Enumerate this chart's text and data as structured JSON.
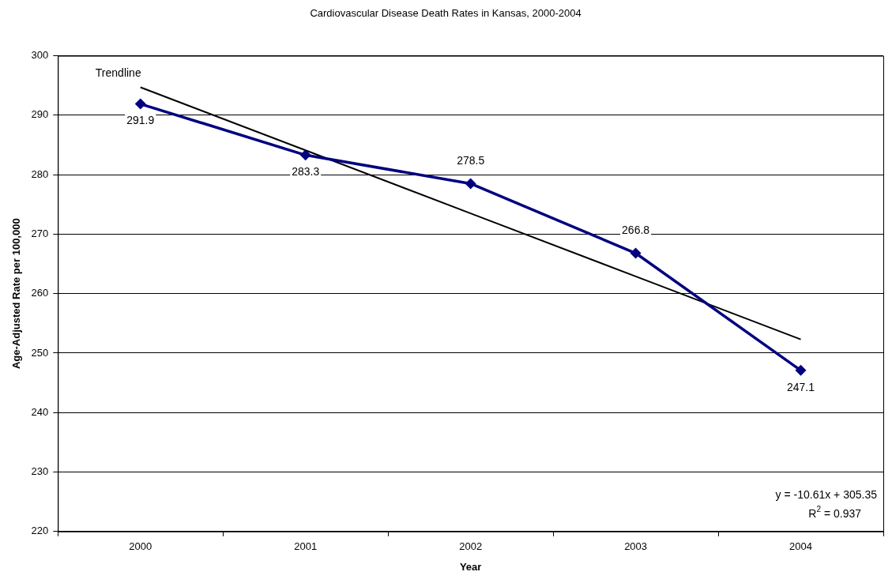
{
  "chart_data": {
    "type": "line",
    "title": "Cardiovascular Disease Death Rates in Kansas, 2000-2004",
    "xlabel": "Year",
    "ylabel": "Age-Adjusted Rate per 100,000",
    "categories": [
      "2000",
      "2001",
      "2002",
      "2003",
      "2004"
    ],
    "series": [
      {
        "color": "#000080",
        "values": [
          291.9,
          283.3,
          278.5,
          266.8,
          247.1
        ],
        "marker": "diamond",
        "value_labels": [
          "291.9",
          "283.3",
          "278.5",
          "266.8",
          "247.1"
        ]
      },
      {
        "name": "Trendline",
        "type": "line",
        "color": "#000000",
        "marker": "none",
        "values": [
          294.7,
          284.1,
          273.5,
          262.9,
          252.3
        ]
      }
    ],
    "ylim": [
      220,
      300
    ],
    "yticks": [
      220,
      230,
      240,
      250,
      260,
      270,
      280,
      290,
      300
    ],
    "grid": "y",
    "legend": false,
    "annotations": [
      "y = -10.61x + 305.35",
      "R$^{2}$ = 0.937"
    ]
  }
}
